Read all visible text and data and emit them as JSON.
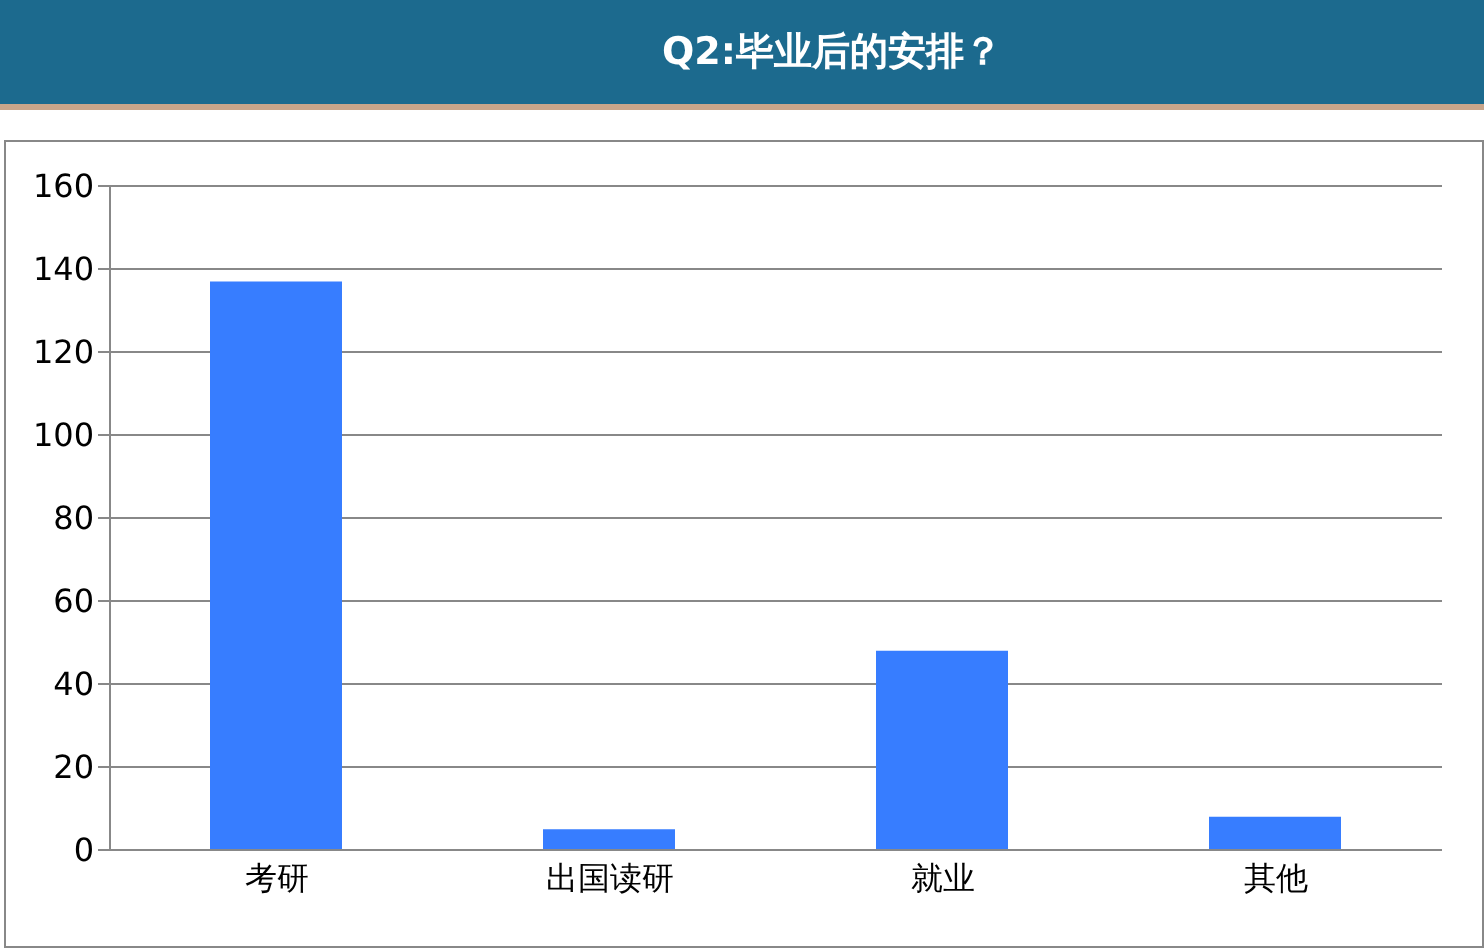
{
  "chart_data": {
    "type": "bar",
    "title": "Q2:毕业后的安排？",
    "categories": [
      "考研",
      "出国读研",
      "就业",
      "其他"
    ],
    "values": [
      137,
      5,
      48,
      8
    ],
    "color": "#377dff",
    "ylim": [
      0,
      160
    ],
    "yticks": [
      0,
      20,
      40,
      60,
      80,
      100,
      120,
      140,
      160
    ],
    "grid": "y"
  }
}
